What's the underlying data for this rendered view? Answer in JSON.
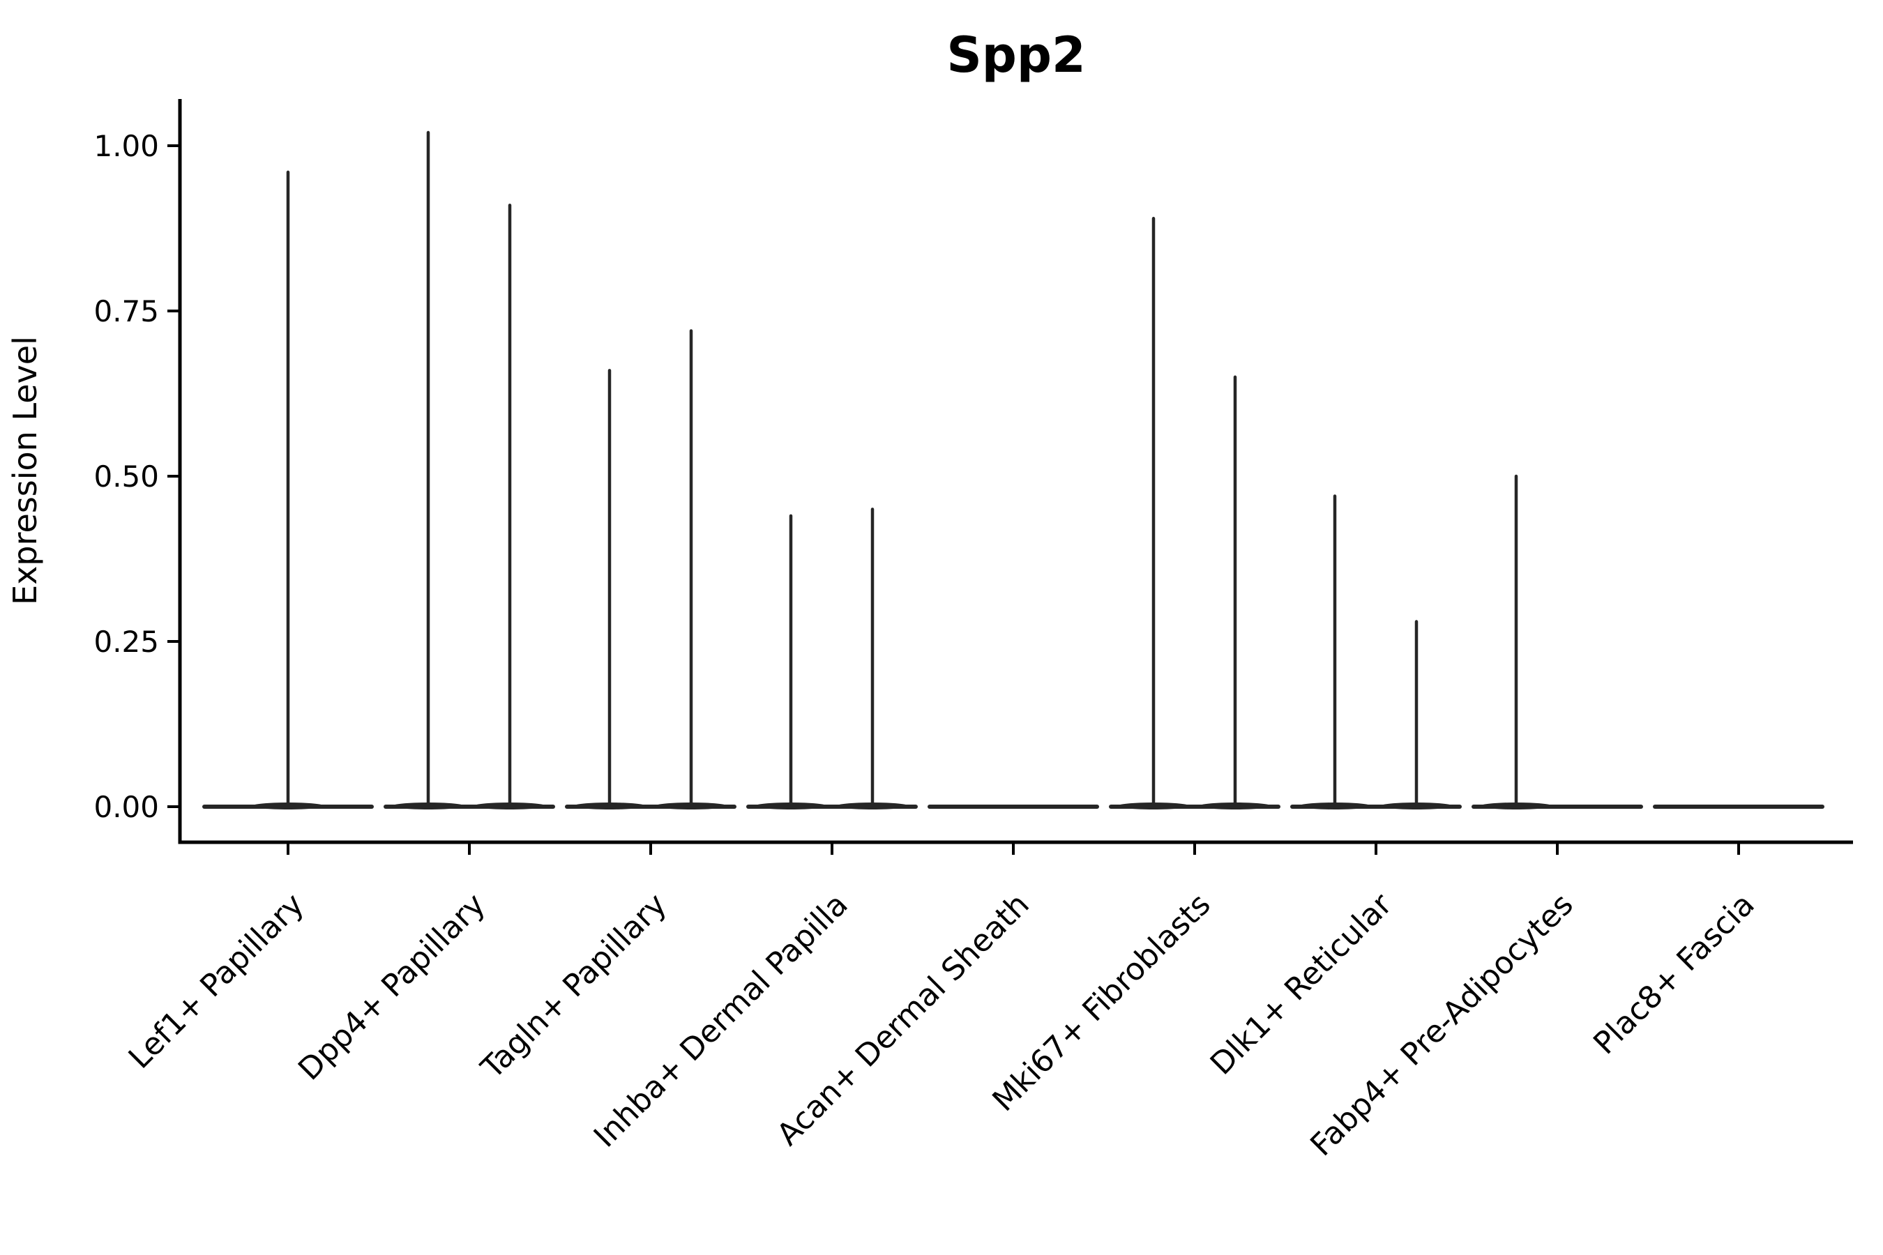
{
  "title": "Spp2",
  "chart_data": {
    "type": "violin",
    "title": "Spp2",
    "xlabel": "",
    "ylabel": "Expression Level",
    "grid": false,
    "legend": "none",
    "ylim": [
      0,
      1.07
    ],
    "ytick_labels": [
      "0.00",
      "0.25",
      "0.50",
      "0.75",
      "1.00"
    ],
    "ytick_values": [
      0,
      0.25,
      0.5,
      0.75,
      1.0
    ],
    "categories": [
      "Lef1+ Papillary",
      "Dpp4+ Papillary",
      "Tagln+ Papillary",
      "Inhba+ Dermal Papilla",
      "Acan+ Dermal Sheath",
      "Mki67+ Fibroblasts",
      "Dlk1+ Reticular",
      "Fabp4+ Pre-Adipocytes",
      "Plac8+ Fascia"
    ],
    "violins": [
      {
        "category": "Lef1+ Papillary",
        "baseline_value": 0,
        "spikes": [
          {
            "position": "center",
            "max_expression": 0.96
          }
        ]
      },
      {
        "category": "Dpp4+ Papillary",
        "baseline_value": 0,
        "spikes": [
          {
            "position": "left",
            "max_expression": 1.02
          },
          {
            "position": "right",
            "max_expression": 0.91
          }
        ]
      },
      {
        "category": "Tagln+ Papillary",
        "baseline_value": 0,
        "spikes": [
          {
            "position": "left",
            "max_expression": 0.66
          },
          {
            "position": "right",
            "max_expression": 0.72
          }
        ]
      },
      {
        "category": "Inhba+ Dermal Papilla",
        "baseline_value": 0,
        "spikes": [
          {
            "position": "left",
            "max_expression": 0.44
          },
          {
            "position": "right",
            "max_expression": 0.45
          }
        ]
      },
      {
        "category": "Acan+ Dermal Sheath",
        "baseline_value": 0,
        "spikes": []
      },
      {
        "category": "Mki67+ Fibroblasts",
        "baseline_value": 0,
        "spikes": [
          {
            "position": "left",
            "max_expression": 0.89
          },
          {
            "position": "right",
            "max_expression": 0.65
          }
        ]
      },
      {
        "category": "Dlk1+ Reticular",
        "baseline_value": 0,
        "spikes": [
          {
            "position": "left",
            "max_expression": 0.47
          },
          {
            "position": "right",
            "max_expression": 0.28
          }
        ]
      },
      {
        "category": "Fabp4+ Pre-Adipocytes",
        "baseline_value": 0,
        "spikes": [
          {
            "position": "left",
            "max_expression": 0.5
          }
        ]
      },
      {
        "category": "Plac8+ Fascia",
        "baseline_value": 0,
        "spikes": []
      }
    ],
    "colors": {
      "violin_stroke": "#262626",
      "axis": "#000000",
      "text": "#000000",
      "background": "#ffffff"
    }
  }
}
